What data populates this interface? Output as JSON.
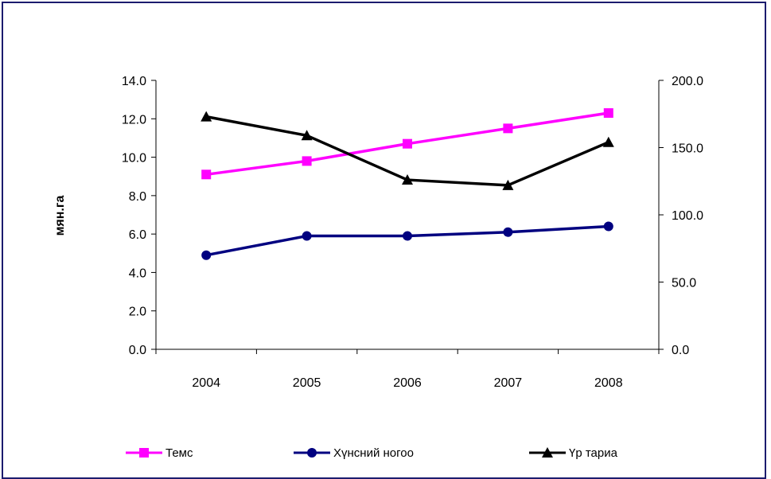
{
  "chart_data": {
    "type": "line",
    "title": "",
    "ylabel": "мян.га",
    "categories": [
      "2004",
      "2005",
      "2006",
      "2007",
      "2008"
    ],
    "y_left": {
      "ylim": [
        0,
        14
      ],
      "ticks": [
        "0.0",
        "2.0",
        "4.0",
        "6.0",
        "8.0",
        "10.0",
        "12.0",
        "14.0"
      ]
    },
    "y_right": {
      "ylim": [
        0,
        200
      ],
      "ticks": [
        "0.0",
        "50.0",
        "100.0",
        "150.0",
        "200.0"
      ]
    },
    "grid": false,
    "legend_position": "bottom",
    "series": [
      {
        "name": "Темс",
        "axis": "left",
        "color": "#ff00ff",
        "marker": "square",
        "values": [
          9.1,
          9.8,
          10.7,
          11.5,
          12.3
        ]
      },
      {
        "name": "Хүнсний ногоо",
        "axis": "left",
        "color": "#000080",
        "marker": "circle",
        "values": [
          4.9,
          5.9,
          5.9,
          6.1,
          6.4
        ]
      },
      {
        "name": "Үр тариа",
        "axis": "right",
        "color": "#000000",
        "marker": "triangle",
        "values": [
          173,
          159,
          126,
          122,
          154
        ]
      }
    ]
  }
}
